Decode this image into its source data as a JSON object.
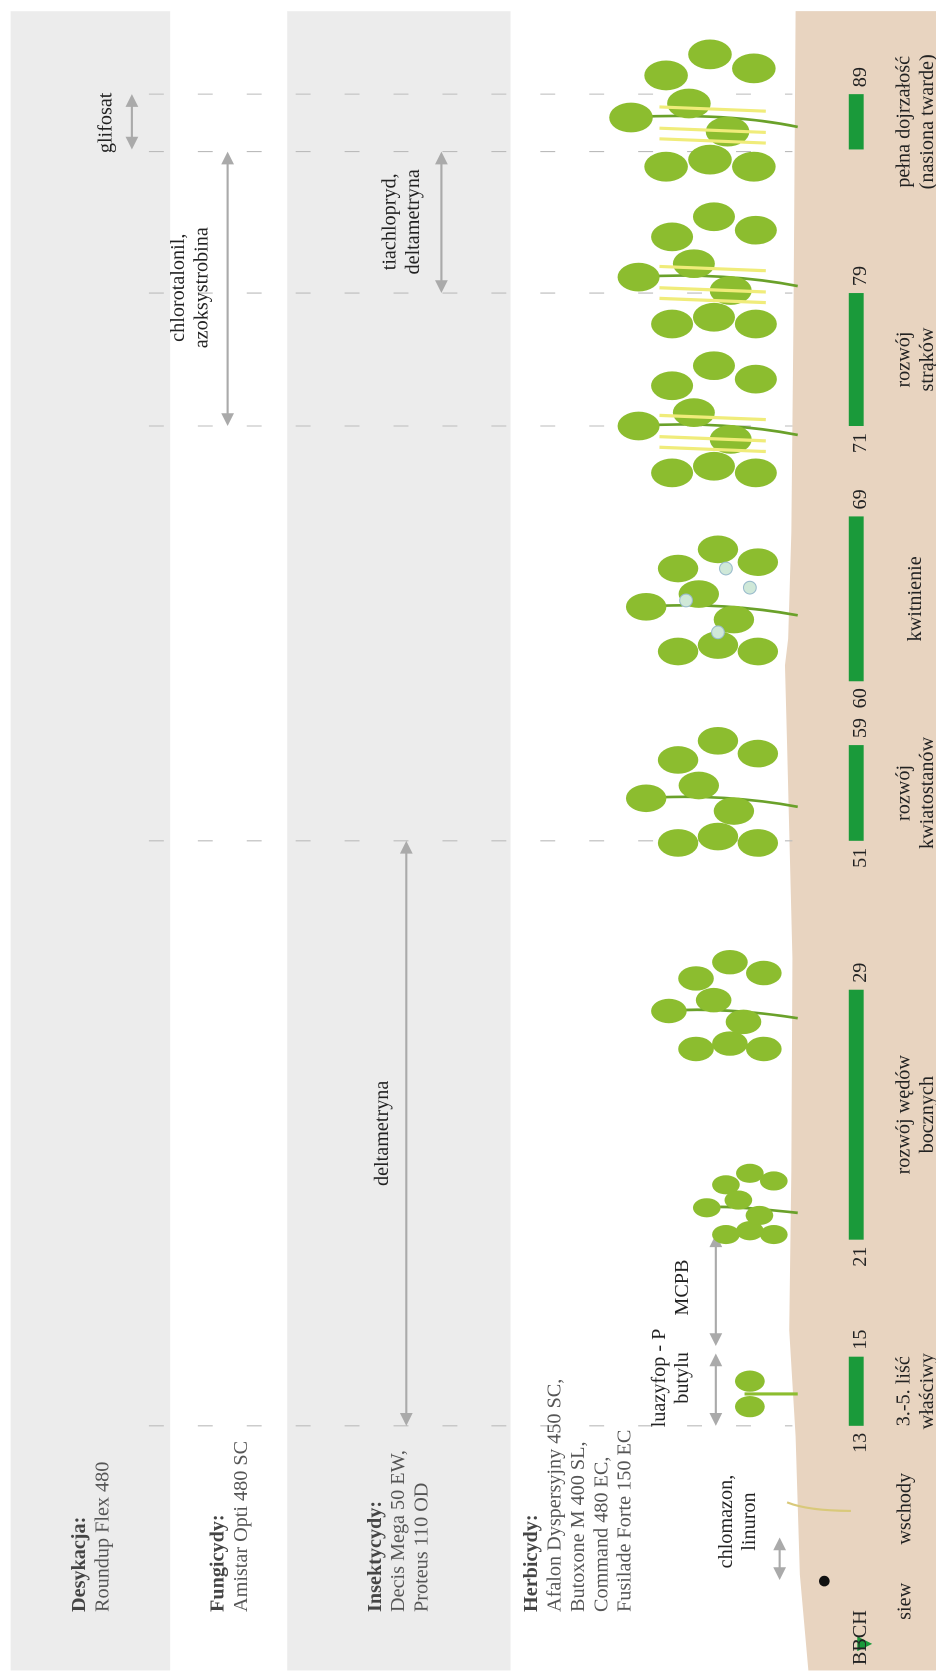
{
  "panels": [
    {
      "title": "Desykacja:",
      "products": [
        "Roundup Flex 480"
      ]
    },
    {
      "title": "Fungicydy:",
      "products": [
        "Amistar Opti 480 SC"
      ]
    },
    {
      "title": "Insektycydy:",
      "products": [
        "Decis Mega 50 EW,",
        "Proteus 110 OD"
      ]
    },
    {
      "title": "Herbicydy:",
      "products": [
        "Afalon Dyspersyjny 450 SC,",
        "Butoxone M 400 SL,",
        "Command 480 EC,",
        "Fusilade Forte 150 EC"
      ]
    }
  ],
  "treatments": [
    {
      "lines": [
        "glifosat"
      ]
    },
    {
      "lines": [
        "chlorotalonil,",
        "azoksystrobina"
      ]
    },
    {
      "lines": [
        "tiachlopryd,",
        "deltametryna"
      ]
    },
    {
      "lines": [
        "deltametryna"
      ]
    },
    {
      "lines": [
        "luazyfop - P",
        "butylu"
      ]
    },
    {
      "lines": [
        "MCPB"
      ]
    },
    {
      "lines": [
        "chlomazon,",
        "linuron"
      ]
    }
  ],
  "scale_label": "BBCH",
  "sowing": "siew",
  "emergence": "wschody",
  "stages": [
    {
      "codes": [
        "13",
        "15"
      ],
      "lines": [
        "3.-5. liść",
        "właściwy"
      ]
    },
    {
      "codes": [
        "21",
        "29"
      ],
      "lines": [
        "rozwój wędów",
        "bocznych"
      ]
    },
    {
      "codes": [
        "51",
        "59"
      ],
      "lines": [
        "rozwój",
        "kwiatostanów"
      ]
    },
    {
      "codes": [
        "60",
        "69"
      ],
      "lines": [
        "kwitnienie"
      ]
    },
    {
      "codes": [
        "71",
        "79"
      ],
      "lines": [
        "rozwój",
        "strąków"
      ]
    },
    {
      "codes": [
        "89"
      ],
      "lines": [
        "pełna dojrzałość",
        "(nasiona twarde)"
      ]
    }
  ]
}
